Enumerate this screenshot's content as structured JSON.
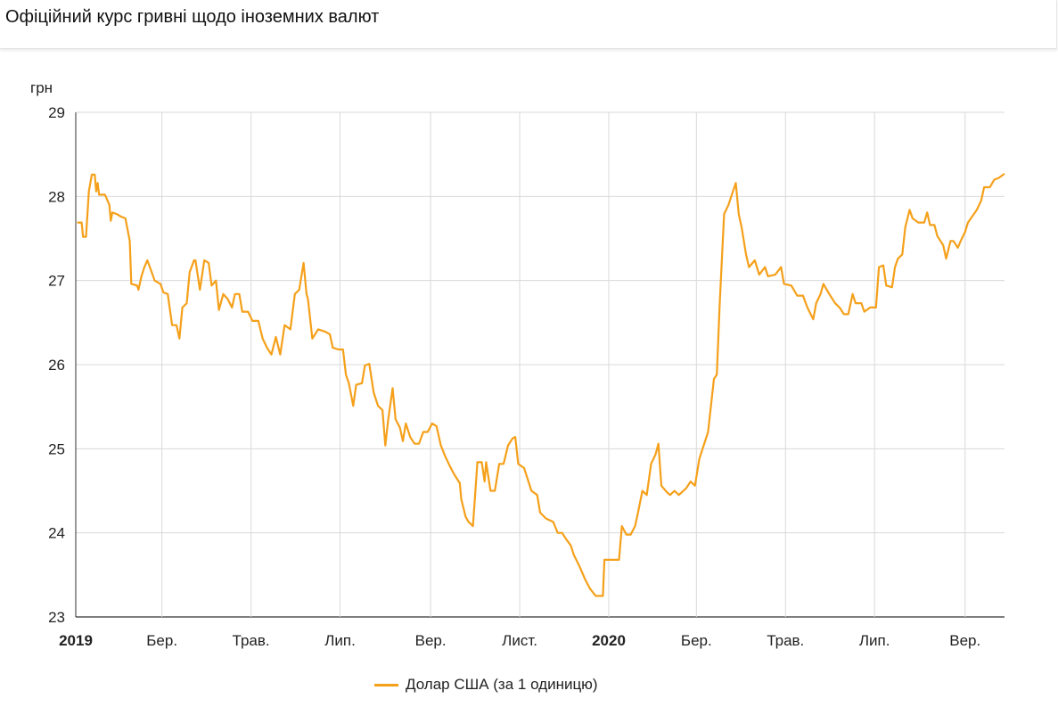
{
  "header": {
    "title": "Офіційний курс гривні щодо іноземних валют"
  },
  "chart_data": {
    "type": "line",
    "title": "Офіційний курс гривні щодо іноземних валют",
    "ylabel": "грн",
    "xlabel": "",
    "x_unit": "days since 2019-01-01",
    "xlim": [
      0,
      636
    ],
    "ylim": [
      23,
      29
    ],
    "yticks": [
      23,
      24,
      25,
      26,
      27,
      28,
      29
    ],
    "xticks": [
      {
        "x": 0,
        "label": "2019",
        "bold": true
      },
      {
        "x": 59,
        "label": "Бер.",
        "bold": false
      },
      {
        "x": 120,
        "label": "Трав.",
        "bold": false
      },
      {
        "x": 181,
        "label": "Лип.",
        "bold": false
      },
      {
        "x": 243,
        "label": "Вер.",
        "bold": false
      },
      {
        "x": 304,
        "label": "Лист.",
        "bold": false
      },
      {
        "x": 365,
        "label": "2020",
        "bold": true
      },
      {
        "x": 425,
        "label": "Бер.",
        "bold": false
      },
      {
        "x": 486,
        "label": "Трав.",
        "bold": false
      },
      {
        "x": 547,
        "label": "Лип.",
        "bold": false
      },
      {
        "x": 609,
        "label": "Вер.",
        "bold": false
      }
    ],
    "grid": true,
    "legend_position": "bottom",
    "series": [
      {
        "name": "Долар США (за 1 одиницю)",
        "color": "#f5a01a",
        "x": [
          1,
          4,
          5,
          7,
          9,
          11,
          13,
          14,
          15,
          16,
          20,
          23,
          24,
          25,
          28,
          31,
          34,
          37,
          38,
          42,
          43,
          45,
          47,
          49,
          52,
          54,
          58,
          60,
          63,
          66,
          69,
          71,
          73,
          76,
          78,
          81,
          82,
          85,
          88,
          91,
          93,
          96,
          98,
          101,
          104,
          107,
          109,
          112,
          114,
          118,
          121,
          125,
          128,
          131,
          134,
          137,
          140,
          143,
          147,
          150,
          153,
          156,
          158,
          159,
          162,
          166,
          171,
          174,
          176,
          180,
          183,
          185,
          187,
          190,
          192,
          196,
          198,
          201,
          204,
          207,
          210,
          212,
          214,
          217,
          219,
          222,
          224,
          226,
          229,
          232,
          235,
          238,
          241,
          244,
          247,
          250,
          253,
          256,
          259,
          263,
          264,
          267,
          269,
          272,
          275,
          278,
          280,
          281,
          284,
          287,
          290,
          293,
          296,
          299,
          301,
          303,
          307,
          310,
          312,
          316,
          318,
          322,
          327,
          330,
          333,
          336,
          339,
          341,
          345,
          349,
          352,
          356,
          361,
          362,
          368,
          372,
          374,
          377,
          380,
          383,
          385,
          388,
          391,
          394,
          397,
          399,
          401,
          405,
          407,
          410,
          413,
          418,
          421,
          424,
          427,
          430,
          433,
          437,
          439,
          441,
          444,
          447,
          450,
          452,
          454,
          456,
          459,
          461,
          465,
          468,
          472,
          474,
          479,
          483,
          485,
          490,
          494,
          498,
          501,
          505,
          507,
          510,
          512,
          516,
          520,
          523,
          526,
          529,
          532,
          534,
          538,
          540,
          544,
          548,
          550,
          553,
          555,
          559,
          561,
          563,
          566,
          568,
          571,
          573,
          577,
          581,
          583,
          585,
          588,
          590,
          594,
          596,
          599,
          601,
          604,
          606,
          609,
          611,
          615,
          617,
          620,
          622,
          626,
          629,
          632,
          636
        ],
        "y": [
          27.69,
          27.69,
          27.52,
          27.52,
          28.06,
          28.26,
          28.26,
          28.06,
          28.16,
          28.02,
          28.02,
          27.9,
          27.71,
          27.81,
          27.79,
          27.76,
          27.74,
          27.47,
          26.96,
          26.94,
          26.89,
          27.05,
          27.16,
          27.24,
          27.1,
          27.0,
          26.96,
          26.86,
          26.84,
          26.47,
          26.47,
          26.31,
          26.68,
          26.73,
          27.1,
          27.24,
          27.24,
          26.89,
          27.24,
          27.21,
          26.94,
          27.0,
          26.65,
          26.84,
          26.78,
          26.68,
          26.84,
          26.84,
          26.63,
          26.63,
          26.52,
          26.52,
          26.31,
          26.2,
          26.12,
          26.33,
          26.12,
          26.47,
          26.42,
          26.84,
          26.89,
          27.21,
          26.84,
          26.78,
          26.31,
          26.42,
          26.39,
          26.36,
          26.2,
          26.18,
          26.18,
          25.88,
          25.78,
          25.51,
          25.76,
          25.78,
          25.99,
          26.01,
          25.67,
          25.51,
          25.46,
          25.04,
          25.35,
          25.72,
          25.35,
          25.25,
          25.09,
          25.3,
          25.14,
          25.06,
          25.06,
          25.2,
          25.2,
          25.3,
          25.27,
          25.04,
          24.91,
          24.8,
          24.7,
          24.59,
          24.4,
          24.19,
          24.13,
          24.08,
          24.84,
          24.84,
          24.61,
          24.84,
          24.5,
          24.5,
          24.82,
          24.82,
          25.04,
          25.12,
          25.14,
          24.82,
          24.77,
          24.61,
          24.5,
          24.45,
          24.24,
          24.17,
          24.13,
          24.0,
          24.0,
          23.92,
          23.85,
          23.74,
          23.6,
          23.44,
          23.34,
          23.25,
          23.25,
          23.68,
          23.68,
          23.68,
          24.08,
          23.98,
          23.98,
          24.08,
          24.24,
          24.5,
          24.45,
          24.82,
          24.93,
          25.06,
          24.56,
          24.48,
          24.45,
          24.5,
          24.45,
          24.53,
          24.61,
          24.56,
          24.88,
          25.04,
          25.2,
          25.83,
          25.88,
          26.73,
          27.79,
          27.9,
          28.06,
          28.16,
          27.79,
          27.63,
          27.31,
          27.16,
          27.24,
          27.07,
          27.16,
          27.05,
          27.07,
          27.16,
          26.96,
          26.94,
          26.82,
          26.82,
          26.68,
          26.54,
          26.73,
          26.84,
          26.96,
          26.84,
          26.73,
          26.68,
          26.6,
          26.6,
          26.84,
          26.73,
          26.73,
          26.63,
          26.68,
          26.68,
          27.16,
          27.18,
          26.94,
          26.92,
          27.16,
          27.26,
          27.31,
          27.63,
          27.84,
          27.74,
          27.69,
          27.69,
          27.81,
          27.66,
          27.66,
          27.53,
          27.42,
          27.26,
          27.47,
          27.47,
          27.39,
          27.47,
          27.58,
          27.69,
          27.79,
          27.84,
          27.95,
          28.11,
          28.11,
          28.2,
          28.22,
          28.27
        ]
      }
    ]
  }
}
